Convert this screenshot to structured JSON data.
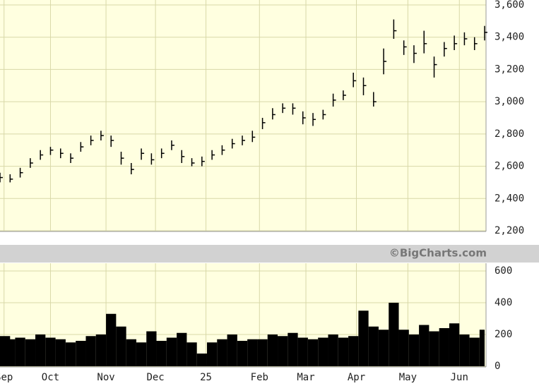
{
  "chart_data": [
    {
      "type": "ohlc",
      "annotation": "©BigCharts.com",
      "x": [
        0,
        1,
        2,
        3,
        4,
        5,
        6,
        7,
        8,
        9,
        10,
        11,
        12,
        13,
        14,
        15,
        16,
        17,
        18,
        19,
        20,
        21,
        22,
        23,
        24,
        25,
        26,
        27,
        28,
        29,
        30,
        31,
        32,
        33,
        34,
        35,
        36,
        37,
        38,
        39,
        40,
        41,
        42,
        43,
        44,
        45,
        46,
        47,
        48
      ],
      "xlim": [
        0,
        48
      ],
      "xticks": [
        {
          "value": 0.4,
          "label": "Sep"
        },
        {
          "value": 5,
          "label": "Oct"
        },
        {
          "value": 10.5,
          "label": "Nov"
        },
        {
          "value": 15.4,
          "label": "Dec"
        },
        {
          "value": 20.4,
          "label": "25"
        },
        {
          "value": 25.7,
          "label": "Feb"
        },
        {
          "value": 30.3,
          "label": "Mar"
        },
        {
          "value": 35.3,
          "label": "Apr"
        },
        {
          "value": 40.4,
          "label": "May"
        },
        {
          "value": 45.5,
          "label": "Jun"
        }
      ],
      "close": [
        2530,
        2520,
        2560,
        2620,
        2670,
        2700,
        2680,
        2650,
        2720,
        2760,
        2790,
        2760,
        2650,
        2580,
        2680,
        2640,
        2680,
        2730,
        2660,
        2620,
        2630,
        2670,
        2700,
        2740,
        2760,
        2780,
        2870,
        2920,
        2960,
        2960,
        2900,
        2890,
        2920,
        3010,
        3040,
        3130,
        3100,
        3000,
        3250,
        3440,
        3340,
        3300,
        3360,
        3230,
        3330,
        3360,
        3390,
        3360,
        3430
      ],
      "high": [
        2560,
        2550,
        2590,
        2650,
        2700,
        2720,
        2710,
        2680,
        2750,
        2790,
        2820,
        2790,
        2690,
        2620,
        2710,
        2680,
        2710,
        2760,
        2700,
        2650,
        2660,
        2700,
        2730,
        2770,
        2790,
        2820,
        2900,
        2960,
        2990,
        2990,
        2940,
        2930,
        2950,
        3050,
        3070,
        3180,
        3150,
        3060,
        3330,
        3510,
        3380,
        3350,
        3440,
        3280,
        3370,
        3410,
        3430,
        3400,
        3470
      ],
      "low": [
        2500,
        2500,
        2530,
        2590,
        2640,
        2670,
        2650,
        2620,
        2690,
        2730,
        2760,
        2720,
        2610,
        2550,
        2640,
        2610,
        2650,
        2700,
        2620,
        2600,
        2600,
        2640,
        2670,
        2710,
        2730,
        2750,
        2830,
        2890,
        2930,
        2920,
        2860,
        2850,
        2890,
        2970,
        3010,
        3090,
        3040,
        2970,
        3170,
        3390,
        3290,
        3240,
        3300,
        3150,
        3280,
        3320,
        3350,
        3320,
        3380
      ],
      "color": "#000000",
      "ylim": [
        2200,
        3600
      ],
      "yticks": [
        {
          "value": 2200,
          "label": "2,200"
        },
        {
          "value": 2400,
          "label": "2,400"
        },
        {
          "value": 2600,
          "label": "2,600"
        },
        {
          "value": 2800,
          "label": "2,800"
        },
        {
          "value": 3000,
          "label": "3,000"
        },
        {
          "value": 3200,
          "label": "3,200"
        },
        {
          "value": 3400,
          "label": "3,400"
        },
        {
          "value": 3600,
          "label": "3,600"
        }
      ],
      "grid": true
    },
    {
      "type": "volume",
      "x": [
        0,
        1,
        2,
        3,
        4,
        5,
        6,
        7,
        8,
        9,
        10,
        11,
        12,
        13,
        14,
        15,
        16,
        17,
        18,
        19,
        20,
        21,
        22,
        23,
        24,
        25,
        26,
        27,
        28,
        29,
        30,
        31,
        32,
        33,
        34,
        35,
        36,
        37,
        38,
        39,
        40,
        41,
        42,
        43,
        44,
        45,
        46,
        47,
        48
      ],
      "xlim": [
        0,
        48
      ],
      "values": [
        190,
        170,
        180,
        170,
        200,
        180,
        170,
        150,
        160,
        190,
        200,
        330,
        250,
        170,
        150,
        220,
        160,
        180,
        210,
        150,
        80,
        150,
        170,
        200,
        160,
        170,
        170,
        200,
        190,
        210,
        180,
        170,
        180,
        200,
        180,
        190,
        350,
        250,
        230,
        400,
        230,
        200,
        260,
        220,
        240,
        270,
        200,
        180,
        230
      ],
      "color": "#000000",
      "ylim": [
        0,
        600
      ],
      "yticks": [
        0,
        200,
        400,
        600
      ],
      "grid": true
    }
  ]
}
